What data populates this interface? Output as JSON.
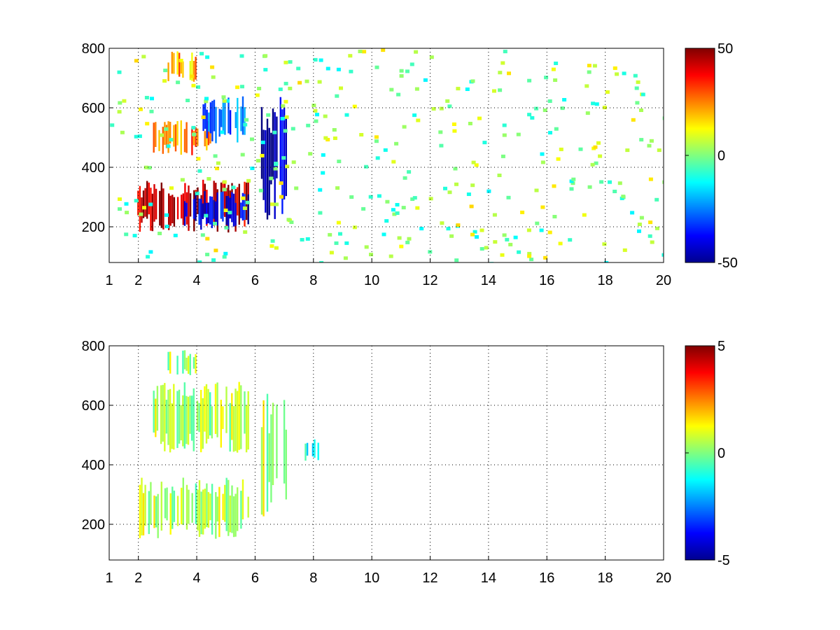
{
  "chart_data": [
    {
      "type": "heatmap",
      "title": "",
      "xlabel": "",
      "ylabel": "",
      "xlim": [
        1,
        20
      ],
      "ylim": [
        80,
        800
      ],
      "x_ticks": [
        1,
        2,
        4,
        6,
        8,
        10,
        12,
        14,
        16,
        18,
        20
      ],
      "y_ticks": [
        200,
        400,
        600,
        800
      ],
      "x_tick_labels": [
        "1",
        "2",
        "4",
        "6",
        "8",
        "10",
        "12",
        "14",
        "16",
        "18",
        "20"
      ],
      "y_tick_labels": [
        "200",
        "400",
        "600",
        "800"
      ],
      "grid": true,
      "colormap": "jet",
      "clim": [
        -50,
        50
      ],
      "colorbar_ticks": [
        50,
        0,
        -50
      ],
      "colorbar_tick_labels": [
        "50",
        "0",
        "-50"
      ],
      "features": [
        {
          "x0": 1.9,
          "x1": 5.8,
          "y0": 180,
          "y1": 360,
          "value": 45,
          "note": "red lower ridge"
        },
        {
          "x0": 3.5,
          "x1": 5.8,
          "y0": 190,
          "y1": 320,
          "value": -40,
          "note": "blue lower ridge"
        },
        {
          "x0": 6.2,
          "x1": 7.1,
          "y0": 220,
          "y1": 640,
          "value": -45
        },
        {
          "x0": 2.5,
          "x1": 4.5,
          "y0": 440,
          "y1": 560,
          "value": 25
        },
        {
          "x0": 4.2,
          "x1": 5.8,
          "y0": 480,
          "y1": 640,
          "value": -25
        },
        {
          "x0": 3.0,
          "x1": 4.0,
          "y0": 680,
          "y1": 790,
          "value": 20
        }
      ]
    },
    {
      "type": "heatmap",
      "title": "",
      "xlabel": "",
      "ylabel": "",
      "xlim": [
        1,
        20
      ],
      "ylim": [
        80,
        800
      ],
      "x_ticks": [
        1,
        2,
        4,
        6,
        8,
        10,
        12,
        14,
        16,
        18,
        20
      ],
      "y_ticks": [
        200,
        400,
        600,
        800
      ],
      "x_tick_labels": [
        "1",
        "2",
        "4",
        "6",
        "8",
        "10",
        "12",
        "14",
        "16",
        "18",
        "20"
      ],
      "y_tick_labels": [
        "200",
        "400",
        "600",
        "800"
      ],
      "grid": true,
      "colormap": "jet",
      "clim": [
        -5,
        5
      ],
      "colorbar_ticks": [
        5,
        0,
        -5
      ],
      "colorbar_tick_labels": [
        "5",
        "0",
        "-5"
      ],
      "features": [
        {
          "x0": 1.9,
          "x1": 5.8,
          "y0": 150,
          "y1": 360,
          "value": 0.5
        },
        {
          "x0": 6.2,
          "x1": 7.1,
          "y0": 220,
          "y1": 640,
          "value": 0.6
        },
        {
          "x0": 2.5,
          "x1": 5.8,
          "y0": 440,
          "y1": 680,
          "value": 0.4
        },
        {
          "x0": 3.0,
          "x1": 4.0,
          "y0": 700,
          "y1": 790,
          "value": 0.3
        },
        {
          "x0": 7.7,
          "x1": 8.2,
          "y0": 400,
          "y1": 500,
          "value": -0.8
        }
      ]
    }
  ]
}
